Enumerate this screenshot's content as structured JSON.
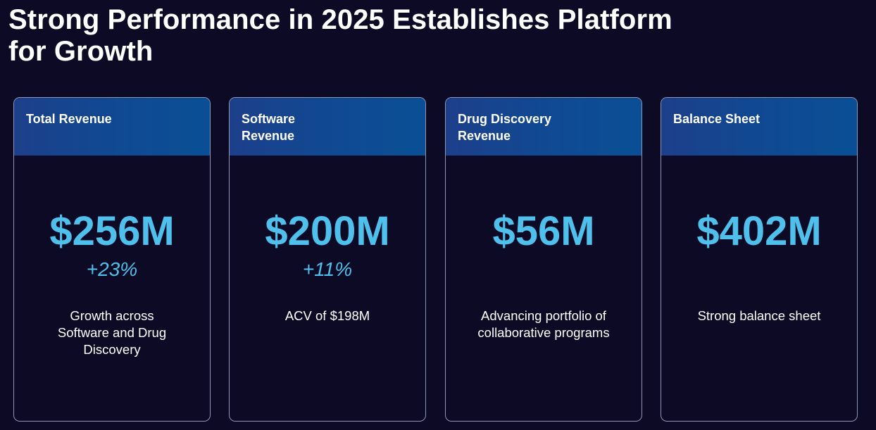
{
  "slide": {
    "title": "Strong Performance in 2025 Establishes Platform\nfor Growth"
  },
  "cards": [
    {
      "title": "Total Revenue",
      "value": "$256M",
      "change": "+23%",
      "description": "Growth across\nSoftware and Drug\nDiscovery"
    },
    {
      "title": "Software\nRevenue",
      "value": "$200M",
      "change": "+11%",
      "description": "ACV of $198M"
    },
    {
      "title": "Drug Discovery\nRevenue",
      "value": "$56M",
      "change": "",
      "description": "Advancing portfolio of\ncollaborative programs"
    },
    {
      "title": "Balance Sheet",
      "value": "$402M",
      "change": "",
      "description": "Strong balance sheet"
    }
  ],
  "colors": {
    "background": "#0c0a24",
    "header_gradient_start": "#1d3f8a",
    "header_gradient_end": "#0a4f95",
    "accent": "#4fc0ec",
    "card_border": "#8e96b4",
    "text": "#ffffff"
  }
}
